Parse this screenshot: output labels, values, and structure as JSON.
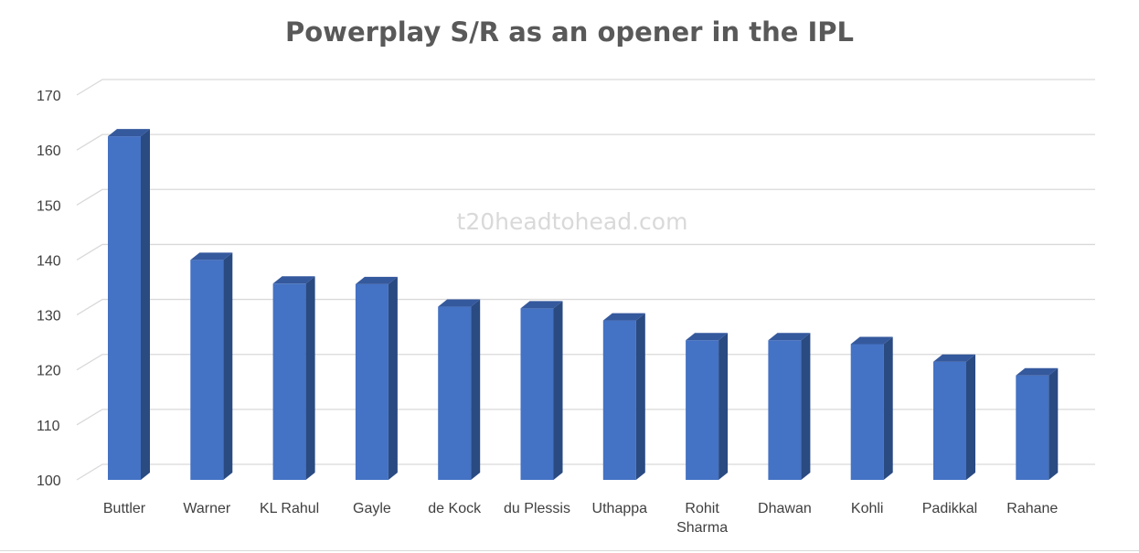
{
  "chart_data": {
    "type": "bar",
    "title": "Powerplay S/R as an opener in the IPL",
    "watermark": "t20headtohead.com",
    "categories": [
      "Buttler",
      "Warner",
      "KL Rahul",
      "Gayle",
      "de Kock",
      "du Plessis",
      "Uthappa",
      "Rohit Sharma",
      "Dhawan",
      "Kohli",
      "Padikkal",
      "Rahane"
    ],
    "series": [
      {
        "values": [
          162.5,
          140.0,
          135.7,
          135.6,
          131.5,
          131.2,
          129.0,
          125.4,
          125.4,
          124.7,
          121.5,
          119.0
        ]
      }
    ],
    "y_ticks": [
      100,
      110,
      120,
      130,
      140,
      150,
      160,
      170
    ],
    "ylim": [
      100,
      170
    ],
    "xlabel": "",
    "ylabel": "",
    "grid": true,
    "style": "3d-column",
    "colors": {
      "front": "#4472c4",
      "side": "#2a4a82",
      "top": "#35599d"
    }
  }
}
